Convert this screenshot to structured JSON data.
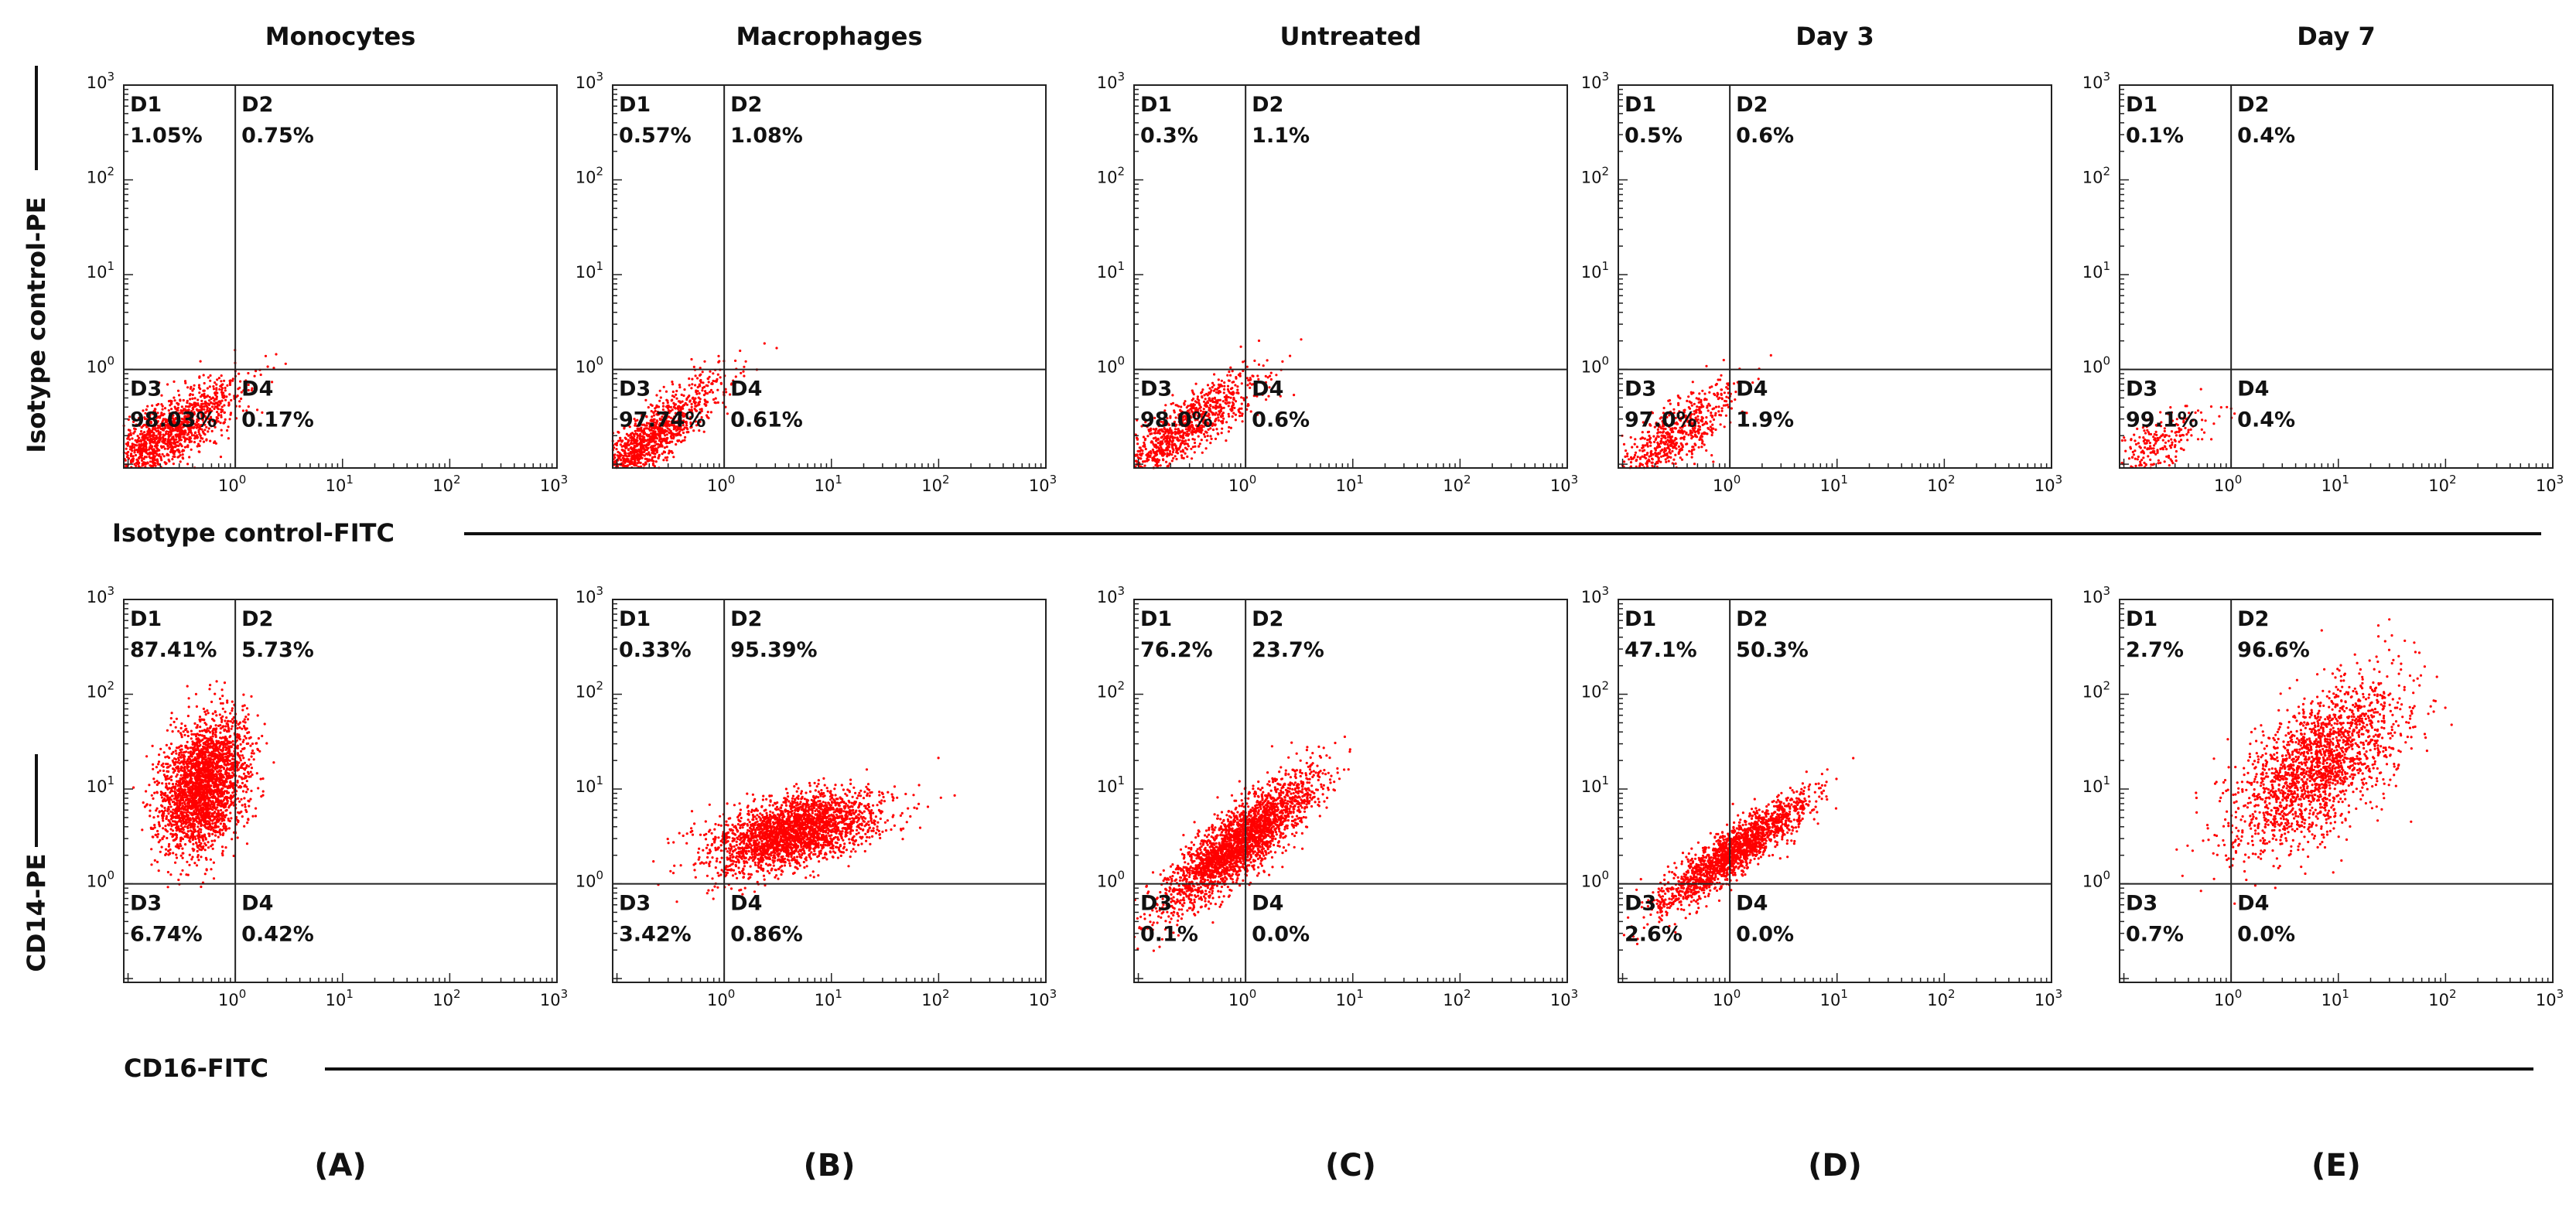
{
  "columns": [
    "Monocytes",
    "Macrophages",
    "Untreated",
    "Day 3",
    "Day 7"
  ],
  "panel_letters": [
    "(A)",
    "(B)",
    "(C)",
    "(D)",
    "(E)"
  ],
  "quadrant_names": [
    "D1",
    "D2",
    "D3",
    "D4"
  ],
  "ticks": [
    {
      "base": "10",
      "exp": 0
    },
    {
      "base": "10",
      "exp": 1
    },
    {
      "base": "10",
      "exp": 2
    },
    {
      "base": "10",
      "exp": 3
    }
  ],
  "rows": [
    {
      "y_label": "Isotype control-PE",
      "x_label": "Isotype control-FITC",
      "panels": [
        [
          "1.05%",
          "0.75%",
          "98.03%",
          "0.17%"
        ],
        [
          "0.57%",
          "1.08%",
          "97.74%",
          "0.61%"
        ],
        [
          "0.3%",
          "1.1%",
          "98.0%",
          "0.6%"
        ],
        [
          "0.5%",
          "0.6%",
          "97.0%",
          "1.9%"
        ],
        [
          "0.1%",
          "0.4%",
          "99.1%",
          "0.4%"
        ]
      ]
    },
    {
      "y_label": "CD14-PE",
      "x_label": "CD16-FITC",
      "panels": [
        [
          "87.41%",
          "5.73%",
          "6.74%",
          "0.42%"
        ],
        [
          "0.33%",
          "95.39%",
          "3.42%",
          "0.86%"
        ],
        [
          "76.2%",
          "23.7%",
          "0.1%",
          "0.0%"
        ],
        [
          "47.1%",
          "50.3%",
          "2.6%",
          "0.0%"
        ],
        [
          "2.7%",
          "96.6%",
          "0.7%",
          "0.0%"
        ]
      ]
    }
  ]
}
